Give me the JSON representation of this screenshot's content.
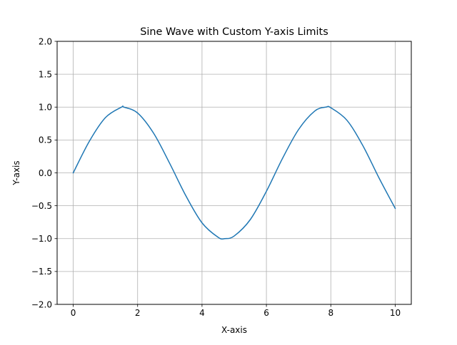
{
  "chart_data": {
    "type": "line",
    "title": "Sine Wave with Custom Y-axis Limits",
    "xlabel": "X-axis",
    "ylabel": "Y-axis",
    "xlim": [
      -0.5,
      10.5
    ],
    "ylim": [
      -2.0,
      2.0
    ],
    "grid": true,
    "x_ticks": [
      0,
      2,
      4,
      6,
      8,
      10
    ],
    "x_tick_labels": [
      "0",
      "2",
      "4",
      "6",
      "8",
      "10"
    ],
    "y_ticks": [
      -2.0,
      -1.5,
      -1.0,
      -0.5,
      0.0,
      0.5,
      1.0,
      1.5,
      2.0
    ],
    "y_tick_labels": [
      "−2.0",
      "−1.5",
      "−1.0",
      "−0.5",
      "0.0",
      "0.5",
      "1.0",
      "1.5",
      "2.0"
    ],
    "series": [
      {
        "color": "#1f77b4",
        "x": [
          0,
          0.5,
          1,
          1.5,
          1.57,
          2,
          2.5,
          3,
          3.5,
          4,
          4.5,
          4.71,
          5,
          5.5,
          6,
          6.5,
          7,
          7.5,
          7.85,
          8,
          8.5,
          9,
          9.5,
          10
        ],
        "y": [
          0.0,
          0.48,
          0.84,
          1.0,
          1.0,
          0.91,
          0.6,
          0.14,
          -0.35,
          -0.76,
          -0.98,
          -1.0,
          -0.96,
          -0.71,
          -0.28,
          0.22,
          0.66,
          0.94,
          1.0,
          0.99,
          0.8,
          0.41,
          -0.08,
          -0.54
        ]
      }
    ]
  }
}
